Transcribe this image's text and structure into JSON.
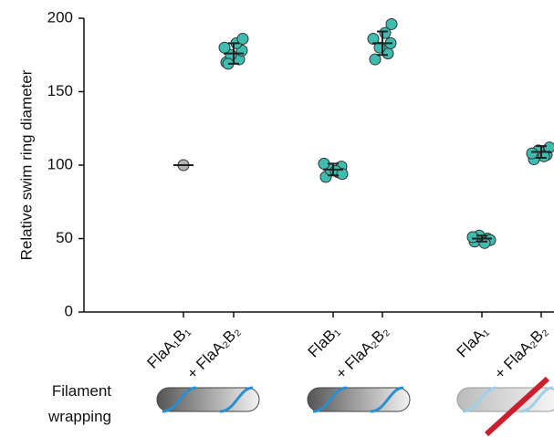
{
  "chart_data": {
    "type": "dot",
    "y_label": "Relative swim ring diameter",
    "categories": [
      "FlaA₁B₁",
      "+ FlaA₂B₂",
      "FlaB₁",
      "+ FlaA₂B₂",
      "FlaA₁",
      "+ FlaA₂B₂"
    ],
    "points": [
      [
        100
      ],
      [
        170,
        172,
        175,
        178,
        180,
        183,
        186,
        169
      ],
      [
        92,
        95,
        97,
        99,
        101,
        96,
        94
      ],
      [
        172,
        176,
        180,
        183,
        186,
        190,
        196
      ],
      [
        48,
        50,
        52,
        49,
        51,
        47
      ],
      [
        104,
        107,
        110,
        112,
        108,
        106
      ]
    ],
    "means": [
      100,
      176,
      97,
      183,
      50,
      109
    ],
    "errors": [
      0,
      7,
      4,
      8,
      2,
      4
    ],
    "point_colors": [
      "#b3b3b3",
      "#3fbcb0",
      "#3fbcb0",
      "#3fbcb0",
      "#3fbcb0",
      "#3fbcb0"
    ],
    "ylim": [
      0,
      200
    ],
    "yticks": [
      0,
      50,
      100,
      150,
      200
    ],
    "row_label_lines": [
      "Filament",
      "wrapping"
    ]
  }
}
